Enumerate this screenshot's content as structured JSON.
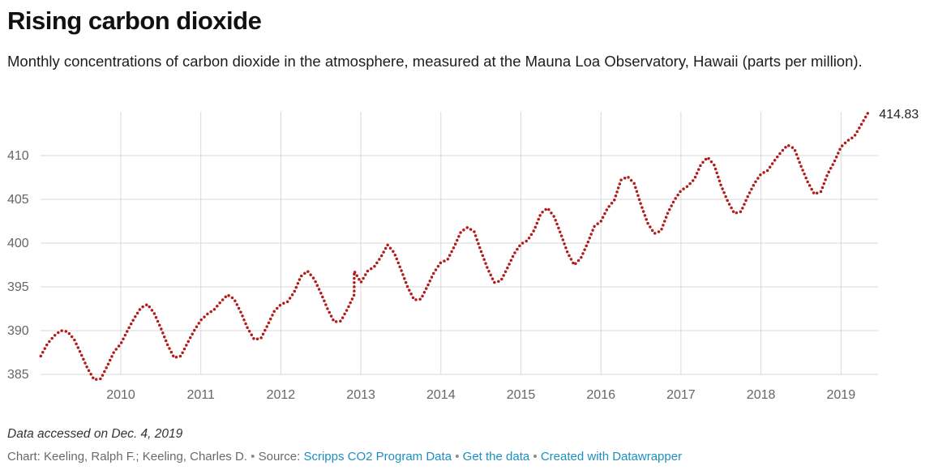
{
  "title": "Rising carbon dioxide",
  "subtitle": "Monthly concentrations of carbon dioxide in the atmosphere, measured at the Mauna Loa Observatory, Hawaii (parts per million).",
  "note": "Data accessed on Dec. 4, 2019",
  "footer": {
    "chart_label": "Chart: Keeling, Ralph F.; Keeling, Charles D.",
    "separator": "•",
    "source_label": "Source:",
    "source_link": "Scripps CO2 Program Data",
    "get_data_link": "Get the data",
    "datawrapper_link": "Created with Datawrapper"
  },
  "colors": {
    "series": "#b31b1b",
    "grid": "#d9d9d9",
    "tick_label": "#666666",
    "end_label": "#222222",
    "link": "#1d8fc0"
  },
  "chart_data": {
    "type": "line",
    "line_style": "dotted",
    "title": "Rising carbon dioxide",
    "xlabel": "",
    "ylabel": "",
    "x_ticks": [
      "2010",
      "2011",
      "2012",
      "2013",
      "2014",
      "2015",
      "2016",
      "2017",
      "2018",
      "2019"
    ],
    "y_ticks": [
      "385",
      "390",
      "395",
      "400",
      "405",
      "410"
    ],
    "xlim": [
      "2009-01",
      "2019-05"
    ],
    "ylim": [
      384.5,
      416
    ],
    "grid": true,
    "legend": "none",
    "end_label": "414.83",
    "series": [
      {
        "values": [
          {
            "x": "2009-01",
            "y": 387.1
          },
          {
            "x": "2009-02",
            "y": 388.5
          },
          {
            "x": "2009-03",
            "y": 389.4
          },
          {
            "x": "2009-04",
            "y": 390.0
          },
          {
            "x": "2009-05",
            "y": 389.9
          },
          {
            "x": "2009-06",
            "y": 389.0
          },
          {
            "x": "2009-07",
            "y": 387.4
          },
          {
            "x": "2009-08",
            "y": 385.7
          },
          {
            "x": "2009-09",
            "y": 384.4
          },
          {
            "x": "2009-10",
            "y": 384.5
          },
          {
            "x": "2009-11",
            "y": 386.0
          },
          {
            "x": "2009-12",
            "y": 387.6
          },
          {
            "x": "2010-01",
            "y": 388.5
          },
          {
            "x": "2010-02",
            "y": 390.0
          },
          {
            "x": "2010-03",
            "y": 391.4
          },
          {
            "x": "2010-04",
            "y": 392.6
          },
          {
            "x": "2010-05",
            "y": 393.0
          },
          {
            "x": "2010-06",
            "y": 392.0
          },
          {
            "x": "2010-07",
            "y": 390.3
          },
          {
            "x": "2010-08",
            "y": 388.4
          },
          {
            "x": "2010-09",
            "y": 386.9
          },
          {
            "x": "2010-10",
            "y": 387.1
          },
          {
            "x": "2010-11",
            "y": 388.6
          },
          {
            "x": "2010-12",
            "y": 390.0
          },
          {
            "x": "2011-01",
            "y": 391.2
          },
          {
            "x": "2011-02",
            "y": 391.9
          },
          {
            "x": "2011-03",
            "y": 392.4
          },
          {
            "x": "2011-04",
            "y": 393.3
          },
          {
            "x": "2011-05",
            "y": 394.1
          },
          {
            "x": "2011-06",
            "y": 393.6
          },
          {
            "x": "2011-07",
            "y": 392.1
          },
          {
            "x": "2011-08",
            "y": 390.3
          },
          {
            "x": "2011-09",
            "y": 389.0
          },
          {
            "x": "2011-10",
            "y": 389.1
          },
          {
            "x": "2011-11",
            "y": 390.6
          },
          {
            "x": "2011-12",
            "y": 392.2
          },
          {
            "x": "2012-01",
            "y": 393.0
          },
          {
            "x": "2012-02",
            "y": 393.3
          },
          {
            "x": "2012-03",
            "y": 394.4
          },
          {
            "x": "2012-04",
            "y": 396.2
          },
          {
            "x": "2012-05",
            "y": 396.8
          },
          {
            "x": "2012-06",
            "y": 395.9
          },
          {
            "x": "2012-07",
            "y": 394.3
          },
          {
            "x": "2012-08",
            "y": 392.5
          },
          {
            "x": "2012-09",
            "y": 391.0
          },
          {
            "x": "2012-10",
            "y": 391.1
          },
          {
            "x": "2012-11",
            "y": 392.5
          },
          {
            "x": "2012-12",
            "y": 394.1
          },
          {
            "x": "2012-12",
            "y": 396.8
          },
          {
            "x": "2013-01",
            "y": 395.5
          },
          {
            "x": "2013-02",
            "y": 396.8
          },
          {
            "x": "2013-03",
            "y": 397.3
          },
          {
            "x": "2013-04",
            "y": 398.4
          },
          {
            "x": "2013-05",
            "y": 399.8
          },
          {
            "x": "2013-06",
            "y": 398.9
          },
          {
            "x": "2013-07",
            "y": 397.0
          },
          {
            "x": "2013-08",
            "y": 395.0
          },
          {
            "x": "2013-09",
            "y": 393.5
          },
          {
            "x": "2013-10",
            "y": 393.6
          },
          {
            "x": "2013-11",
            "y": 395.1
          },
          {
            "x": "2013-12",
            "y": 396.7
          },
          {
            "x": "2014-01",
            "y": 397.8
          },
          {
            "x": "2014-02",
            "y": 398.1
          },
          {
            "x": "2014-03",
            "y": 399.6
          },
          {
            "x": "2014-04",
            "y": 401.3
          },
          {
            "x": "2014-05",
            "y": 401.8
          },
          {
            "x": "2014-06",
            "y": 401.3
          },
          {
            "x": "2014-07",
            "y": 399.1
          },
          {
            "x": "2014-08",
            "y": 397.1
          },
          {
            "x": "2014-09",
            "y": 395.5
          },
          {
            "x": "2014-10",
            "y": 395.7
          },
          {
            "x": "2014-11",
            "y": 397.2
          },
          {
            "x": "2014-12",
            "y": 398.8
          },
          {
            "x": "2015-01",
            "y": 399.9
          },
          {
            "x": "2015-02",
            "y": 400.3
          },
          {
            "x": "2015-03",
            "y": 401.5
          },
          {
            "x": "2015-04",
            "y": 403.4
          },
          {
            "x": "2015-05",
            "y": 404.0
          },
          {
            "x": "2015-06",
            "y": 403.0
          },
          {
            "x": "2015-07",
            "y": 401.0
          },
          {
            "x": "2015-08",
            "y": 398.9
          },
          {
            "x": "2015-09",
            "y": 397.5
          },
          {
            "x": "2015-10",
            "y": 398.3
          },
          {
            "x": "2015-11",
            "y": 400.0
          },
          {
            "x": "2015-12",
            "y": 401.9
          },
          {
            "x": "2016-01",
            "y": 402.5
          },
          {
            "x": "2016-02",
            "y": 404.0
          },
          {
            "x": "2016-03",
            "y": 404.9
          },
          {
            "x": "2016-04",
            "y": 407.2
          },
          {
            "x": "2016-05",
            "y": 407.6
          },
          {
            "x": "2016-06",
            "y": 406.8
          },
          {
            "x": "2016-07",
            "y": 404.4
          },
          {
            "x": "2016-08",
            "y": 402.3
          },
          {
            "x": "2016-09",
            "y": 401.1
          },
          {
            "x": "2016-10",
            "y": 401.4
          },
          {
            "x": "2016-11",
            "y": 403.4
          },
          {
            "x": "2016-12",
            "y": 404.9
          },
          {
            "x": "2017-01",
            "y": 406.0
          },
          {
            "x": "2017-02",
            "y": 406.5
          },
          {
            "x": "2017-03",
            "y": 407.3
          },
          {
            "x": "2017-04",
            "y": 409.0
          },
          {
            "x": "2017-05",
            "y": 409.8
          },
          {
            "x": "2017-06",
            "y": 408.9
          },
          {
            "x": "2017-07",
            "y": 406.6
          },
          {
            "x": "2017-08",
            "y": 404.8
          },
          {
            "x": "2017-09",
            "y": 403.4
          },
          {
            "x": "2017-10",
            "y": 403.6
          },
          {
            "x": "2017-11",
            "y": 405.3
          },
          {
            "x": "2017-12",
            "y": 406.8
          },
          {
            "x": "2018-01",
            "y": 407.9
          },
          {
            "x": "2018-02",
            "y": 408.3
          },
          {
            "x": "2018-03",
            "y": 409.4
          },
          {
            "x": "2018-04",
            "y": 410.4
          },
          {
            "x": "2018-05",
            "y": 411.2
          },
          {
            "x": "2018-06",
            "y": 410.8
          },
          {
            "x": "2018-07",
            "y": 408.8
          },
          {
            "x": "2018-08",
            "y": 407.0
          },
          {
            "x": "2018-09",
            "y": 405.6
          },
          {
            "x": "2018-10",
            "y": 405.9
          },
          {
            "x": "2018-11",
            "y": 407.9
          },
          {
            "x": "2018-12",
            "y": 409.3
          },
          {
            "x": "2019-01",
            "y": 411.0
          },
          {
            "x": "2019-02",
            "y": 411.7
          },
          {
            "x": "2019-03",
            "y": 412.2
          },
          {
            "x": "2019-04",
            "y": 413.5
          },
          {
            "x": "2019-05",
            "y": 414.83
          }
        ]
      }
    ]
  }
}
